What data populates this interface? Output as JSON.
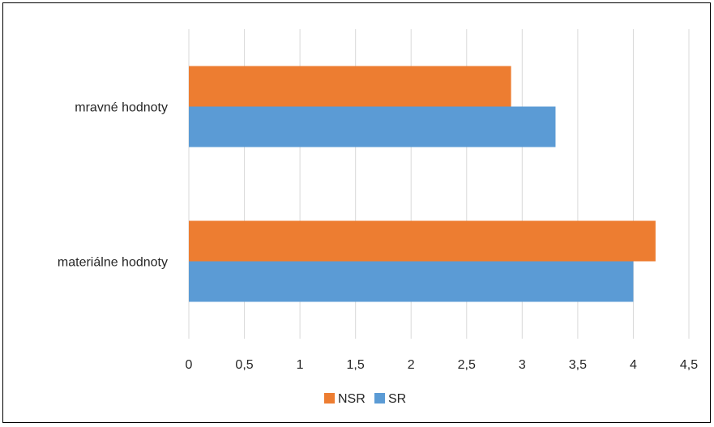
{
  "chart_data": {
    "type": "bar",
    "orientation": "horizontal",
    "categories": [
      "materiálne hodnoty",
      "mravné hodnoty"
    ],
    "series": [
      {
        "name": "SR",
        "values": [
          4.0,
          3.3
        ],
        "color": "#5B9BD5"
      },
      {
        "name": "NSR",
        "values": [
          4.2,
          2.9
        ],
        "color": "#ED7D31"
      }
    ],
    "xlim": [
      0,
      4.5
    ],
    "x_ticks": [
      "0",
      "0,5",
      "1",
      "1,5",
      "2",
      "2,5",
      "3",
      "3,5",
      "4",
      "4,5"
    ],
    "x_tick_values": [
      0,
      0.5,
      1,
      1.5,
      2,
      2.5,
      3,
      3.5,
      4,
      4.5
    ],
    "grid": "vertical",
    "grid_color": "#D9D9D9",
    "legend": {
      "placement": "bottom",
      "entries": [
        "NSR",
        "SR"
      ]
    },
    "title": "",
    "xlabel": "",
    "ylabel": ""
  }
}
